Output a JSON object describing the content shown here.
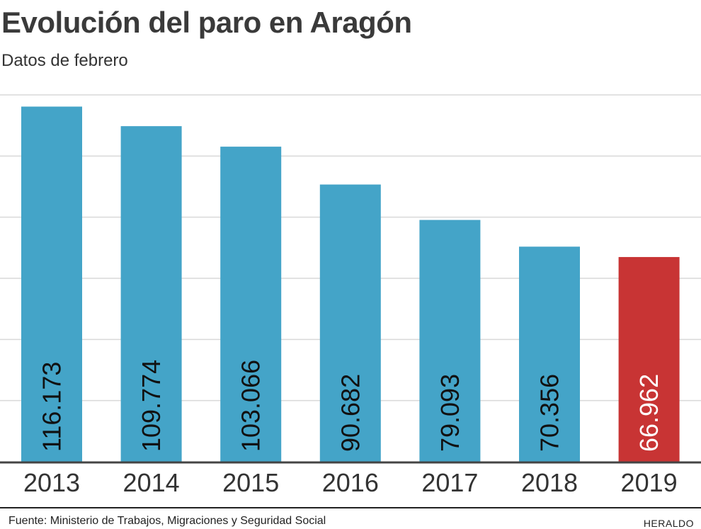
{
  "header": {
    "title": "Evolución del paro en Aragón",
    "subtitle": "Datos de febrero"
  },
  "footer": {
    "source": "Fuente: Ministerio de Trabajos, Migraciones y Seguridad Social",
    "brand": "HERALDO"
  },
  "colors": {
    "bar": "#44a4c8",
    "highlight": "#c83434",
    "grid": "#d9d9d9",
    "axis": "#444444",
    "label_dark": "#111111",
    "label_light": "#ffffff"
  },
  "chart_data": {
    "type": "bar",
    "categories": [
      "2013",
      "2014",
      "2015",
      "2016",
      "2017",
      "2018",
      "2019"
    ],
    "values": [
      116173,
      109774,
      103066,
      90682,
      79093,
      70356,
      66962
    ],
    "value_labels": [
      "116.173",
      "109.774",
      "103.066",
      "90.682",
      "79.093",
      "70.356",
      "66.962"
    ],
    "highlight_index": 6,
    "ylim": [
      0,
      120000
    ],
    "grid": true,
    "title": "Evolución del paro en Aragón",
    "subtitle": "Datos de febrero",
    "xlabel": "",
    "ylabel": ""
  }
}
